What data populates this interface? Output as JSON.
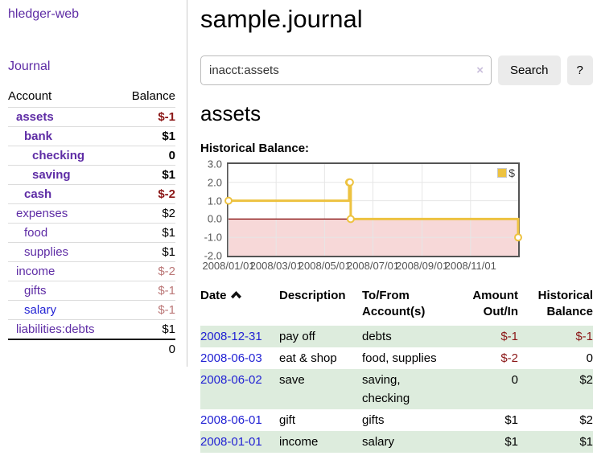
{
  "app": {
    "title": "hledger-web",
    "nav_journal": "Journal"
  },
  "colors": {
    "link_purple": "#5e2ca5",
    "link_blue": "#2323d4",
    "negative_strong": "#8b1717",
    "negative_muted": "#bb7777",
    "row_shade": "#ddecdd",
    "series_gold": "#edc240",
    "tick_gray": "#545454"
  },
  "sidebar": {
    "accounts_table": {
      "headers": {
        "account": "Account",
        "balance": "Balance"
      },
      "rows": [
        {
          "name": "assets",
          "indent": 0,
          "bold": true,
          "link_style": "purple",
          "balance": "$-1",
          "balance_style": "neg-strong"
        },
        {
          "name": "bank",
          "indent": 1,
          "bold": true,
          "link_style": "purple",
          "balance": "$1",
          "balance_style": ""
        },
        {
          "name": "checking",
          "indent": 2,
          "bold": true,
          "link_style": "purple",
          "balance": "0",
          "balance_style": ""
        },
        {
          "name": "saving",
          "indent": 2,
          "bold": true,
          "link_style": "purple",
          "balance": "$1",
          "balance_style": ""
        },
        {
          "name": "cash",
          "indent": 1,
          "bold": true,
          "link_style": "purple",
          "balance": "$-2",
          "balance_style": "neg-strong"
        },
        {
          "name": "expenses",
          "indent": 0,
          "bold": false,
          "link_style": "purple",
          "balance": "$2",
          "balance_style": ""
        },
        {
          "name": "food",
          "indent": 1,
          "bold": false,
          "link_style": "purple",
          "balance": "$1",
          "balance_style": ""
        },
        {
          "name": "supplies",
          "indent": 1,
          "bold": false,
          "link_style": "purple",
          "balance": "$1",
          "balance_style": ""
        },
        {
          "name": "income",
          "indent": 0,
          "bold": false,
          "link_style": "purple",
          "balance": "$-2",
          "balance_style": "neg-muted"
        },
        {
          "name": "gifts",
          "indent": 1,
          "bold": false,
          "link_style": "purple",
          "balance": "$-1",
          "balance_style": "neg-muted"
        },
        {
          "name": "salary",
          "indent": 1,
          "bold": false,
          "link_style": "blue",
          "balance": "$-1",
          "balance_style": "neg-muted"
        },
        {
          "name": "liabilities:debts",
          "indent": 0,
          "bold": false,
          "link_style": "purple",
          "balance": "$1",
          "balance_style": ""
        }
      ],
      "total": "0"
    }
  },
  "main": {
    "page_title": "sample.journal",
    "search": {
      "value": "inacct:assets",
      "clear_label": "×",
      "button_label": "Search",
      "help_label": "?"
    },
    "account_heading": "assets",
    "chart_label": "Historical Balance:"
  },
  "chart_data": {
    "type": "line",
    "title": "Historical Balance",
    "style": "steps-with-markers",
    "x_start": "2008/01/01",
    "x_span_days": 365,
    "ylim": [
      -2,
      3
    ],
    "y_ticks": [
      "3.0",
      "2.0",
      "1.0",
      "0.0",
      "-1.0",
      "-2.0"
    ],
    "y_gridlines": [
      2,
      1,
      -1
    ],
    "x_ticks": [
      "2008/01/01",
      "2008/03/01",
      "2008/05/01",
      "2008/07/01",
      "2008/09/01",
      "2008/11/01"
    ],
    "series": [
      {
        "name": "$",
        "color": "#edc240",
        "points": [
          [
            "2008-01-01",
            1
          ],
          [
            "2008-06-01",
            2
          ],
          [
            "2008-06-02",
            2
          ],
          [
            "2008-06-03",
            0
          ],
          [
            "2008-12-31",
            -1
          ]
        ]
      }
    ],
    "legend": {
      "label": "$",
      "position": "top-right"
    },
    "negative_region_color": "#f7d8d8",
    "zero_line_color": "#800000",
    "grid": true
  },
  "register_table": {
    "headers": {
      "date": "Date",
      "sort_icon": "chevron-up-icon",
      "description": "Description",
      "account_lines": [
        "To/From",
        "Account(s)"
      ],
      "amount_lines": [
        "Amount",
        "Out/In"
      ],
      "balance_lines": [
        "Historical",
        "Balance"
      ]
    },
    "rows": [
      {
        "date": "2008-12-31",
        "description": "pay off",
        "account_lines": [
          "debts"
        ],
        "amount": "$-1",
        "amount_negative": true,
        "balance": "$-1",
        "balance_negative": true,
        "shaded": true
      },
      {
        "date": "2008-06-03",
        "description": "eat & shop",
        "account_lines": [
          "food, supplies"
        ],
        "amount": "$-2",
        "amount_negative": true,
        "balance": "0",
        "balance_negative": false,
        "shaded": false
      },
      {
        "date": "2008-06-02",
        "description": "save",
        "account_lines": [
          "saving,",
          "checking"
        ],
        "amount": "0",
        "amount_negative": false,
        "balance": "$2",
        "balance_negative": false,
        "shaded": true
      },
      {
        "date": "2008-06-01",
        "description": "gift",
        "account_lines": [
          "gifts"
        ],
        "amount": "$1",
        "amount_negative": false,
        "balance": "$2",
        "balance_negative": false,
        "shaded": false
      },
      {
        "date": "2008-01-01",
        "description": "income",
        "account_lines": [
          "salary"
        ],
        "amount": "$1",
        "amount_negative": false,
        "balance": "$1",
        "balance_negative": false,
        "shaded": true
      }
    ]
  }
}
